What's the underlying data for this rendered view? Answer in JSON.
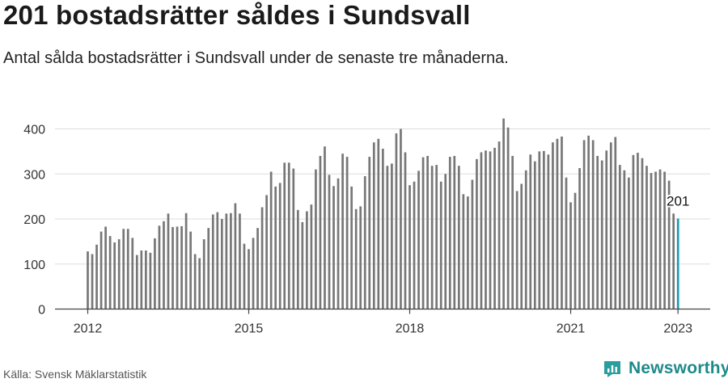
{
  "title": "201 bostadsrätter såldes i Sundsvall",
  "subtitle": "Antal sålda bostadsrätter i Sundsvall under de senaste tre månaderna.",
  "source": "Källa: Svensk Mäklarstatistik",
  "brand": {
    "name": "Newsworthy",
    "icon": "newsworthy-logo-icon",
    "color": "#2a9d9d"
  },
  "chart_data": {
    "type": "bar",
    "x_start": "2012-01",
    "x_step": "month",
    "values": [
      128,
      122,
      143,
      172,
      183,
      162,
      148,
      155,
      178,
      178,
      158,
      120,
      130,
      130,
      125,
      157,
      185,
      195,
      212,
      182,
      183,
      184,
      213,
      172,
      122,
      113,
      155,
      180,
      210,
      215,
      200,
      212,
      213,
      235,
      212,
      145,
      133,
      158,
      180,
      226,
      253,
      305,
      272,
      280,
      325,
      325,
      312,
      220,
      193,
      217,
      232,
      310,
      340,
      361,
      298,
      273,
      290,
      345,
      338,
      272,
      222,
      228,
      295,
      338,
      370,
      378,
      356,
      318,
      323,
      390,
      400,
      348,
      275,
      283,
      307,
      337,
      340,
      318,
      320,
      283,
      300,
      338,
      340,
      318,
      255,
      250,
      287,
      333,
      348,
      352,
      350,
      358,
      372,
      423,
      403,
      340,
      262,
      278,
      308,
      343,
      328,
      350,
      351,
      343,
      370,
      378,
      383,
      292,
      237,
      258,
      313,
      375,
      385,
      375,
      340,
      330,
      352,
      370,
      382,
      320,
      308,
      292,
      342,
      347,
      335,
      318,
      302,
      305,
      310,
      305,
      285,
      212,
      201
    ],
    "highlight_value": 201,
    "highlight_label": "201",
    "highlight_color": "#1a9db3",
    "bar_color": "#777777",
    "x_ticks": [
      "2012",
      "2015",
      "2018",
      "2021",
      "2023"
    ],
    "y_ticks": [
      "0",
      "100",
      "200",
      "300",
      "400"
    ],
    "ylim": [
      0,
      440
    ],
    "grid": true
  }
}
